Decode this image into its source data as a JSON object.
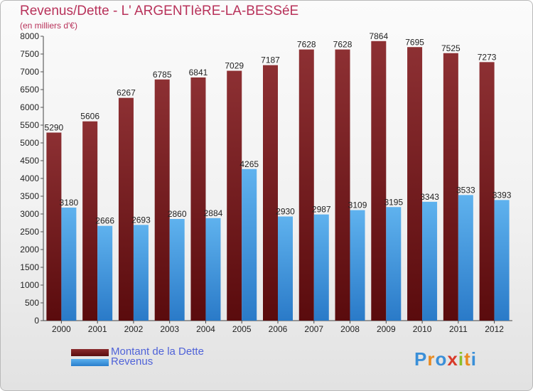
{
  "chart_data": {
    "type": "bar",
    "title": "Revenus/Dette - L' ARGENTIèRE-LA-BESSéE",
    "subtitle": "(en milliers d'€)",
    "categories": [
      "2000",
      "2001",
      "2002",
      "2003",
      "2004",
      "2005",
      "2006",
      "2007",
      "2008",
      "2009",
      "2010",
      "2011",
      "2012"
    ],
    "series": [
      {
        "name": "Montant de la Dette",
        "color": "#7a1a1c",
        "values": [
          5290,
          5606,
          6267,
          6785,
          6841,
          7029,
          7187,
          7628,
          7628,
          7864,
          7695,
          7525,
          7273
        ]
      },
      {
        "name": "Revenus",
        "color": "#3d97e0",
        "values": [
          3180,
          2666,
          2693,
          2860,
          2884,
          4265,
          2930,
          2987,
          3109,
          3195,
          3343,
          3533,
          3393
        ]
      }
    ],
    "ylim": [
      0,
      8000
    ],
    "ytick_step": 500,
    "grid": false,
    "legend": "bottom-left",
    "xlabel": "",
    "ylabel": ""
  },
  "logo": {
    "text": "Proxiti",
    "letters": [
      {
        "ch": "P",
        "color": "#3a8fd8"
      },
      {
        "ch": "r",
        "color": "#e98a1f"
      },
      {
        "ch": "o",
        "color": "#3a8fd8"
      },
      {
        "ch": "x",
        "color": "#d83a2a"
      },
      {
        "ch": "i",
        "color": "#8bbf2a"
      },
      {
        "ch": "t",
        "color": "#e98a1f"
      },
      {
        "ch": "i",
        "color": "#3a8fd8"
      }
    ]
  }
}
